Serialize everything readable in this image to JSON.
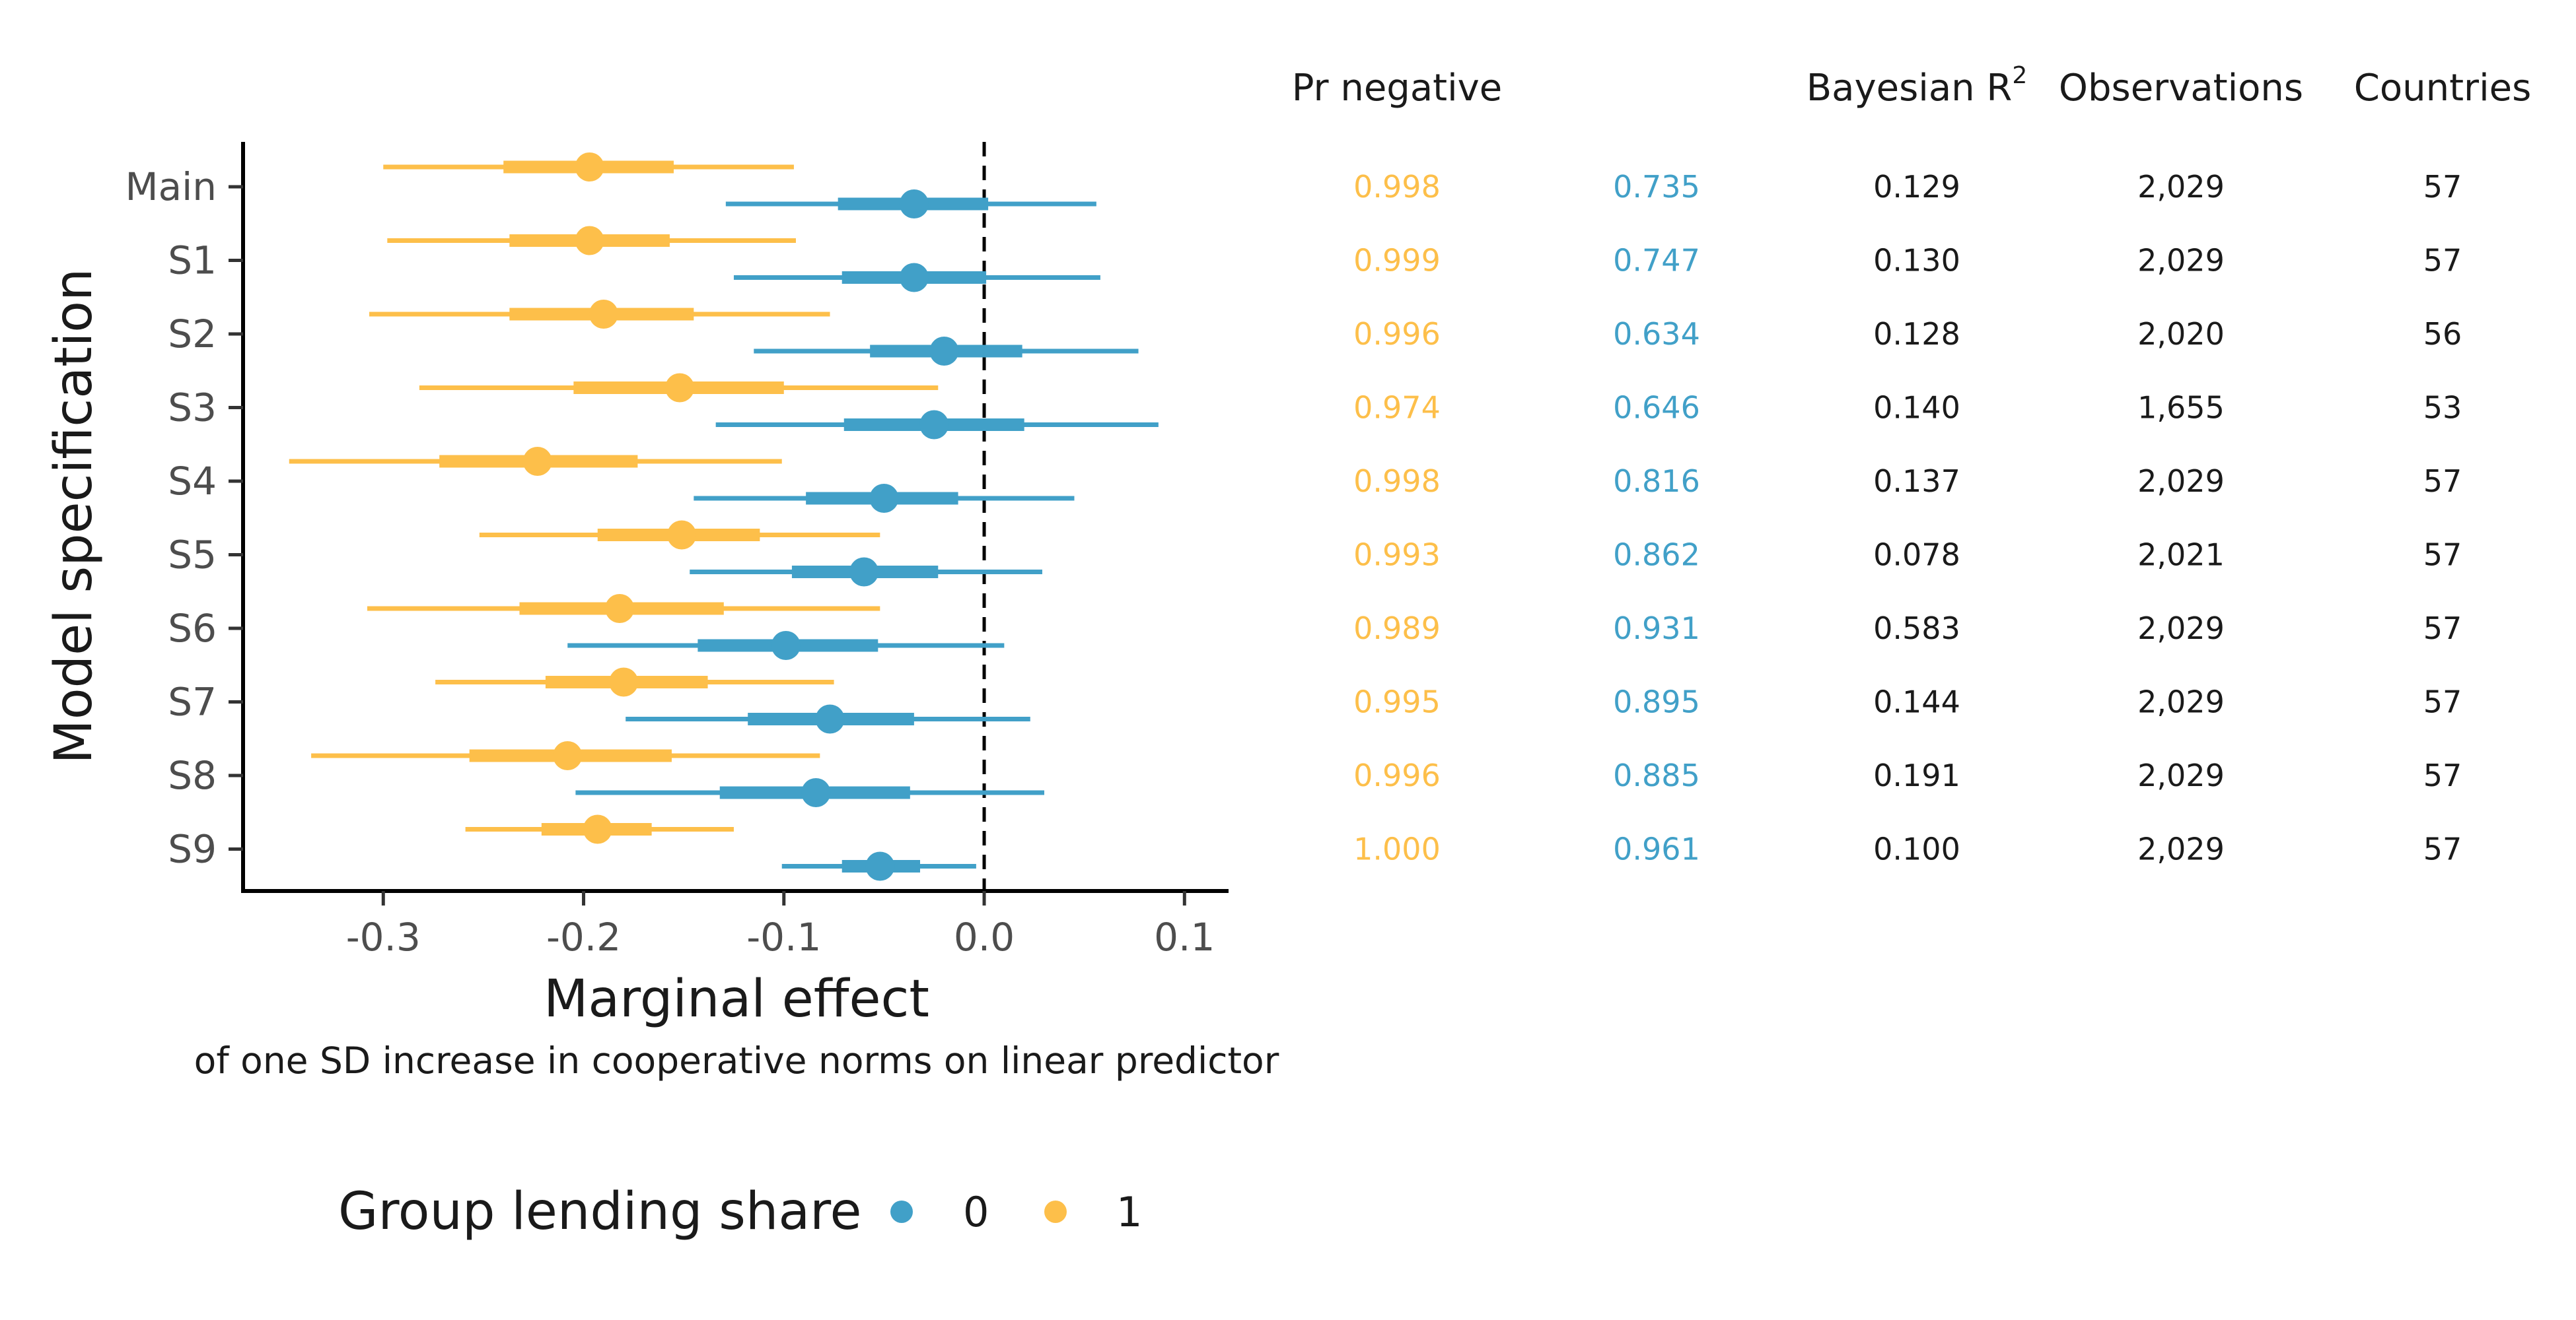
{
  "chart_data": {
    "type": "scatter",
    "title": "",
    "xlabel": "Marginal effect",
    "xlabel_sub": "of one SD increase in cooperative norms on linear predictor",
    "ylabel": "Model specification",
    "xlim": [
      -0.37,
      0.122
    ],
    "xticks": [
      "-0.3",
      "-0.2",
      "-0.1",
      "0.0",
      "0.1"
    ],
    "xtick_values": [
      -0.3,
      -0.2,
      -0.1,
      0.0,
      0.1
    ],
    "reference_line": 0.0,
    "grid": false,
    "legend_position": "bottom",
    "categories": [
      "Main",
      "S1",
      "S2",
      "S3",
      "S4",
      "S5",
      "S6",
      "S7",
      "S8",
      "S9"
    ],
    "series": [
      {
        "name": "1",
        "color": "#FDBF4A",
        "points": [
          {
            "est": -0.197,
            "inner": [
              -0.24,
              -0.155
            ],
            "outer": [
              -0.3,
              -0.095
            ]
          },
          {
            "est": -0.197,
            "inner": [
              -0.237,
              -0.157
            ],
            "outer": [
              -0.298,
              -0.094
            ]
          },
          {
            "est": -0.19,
            "inner": [
              -0.237,
              -0.145
            ],
            "outer": [
              -0.307,
              -0.077
            ]
          },
          {
            "est": -0.152,
            "inner": [
              -0.205,
              -0.1
            ],
            "outer": [
              -0.282,
              -0.023
            ]
          },
          {
            "est": -0.223,
            "inner": [
              -0.272,
              -0.173
            ],
            "outer": [
              -0.347,
              -0.101
            ]
          },
          {
            "est": -0.151,
            "inner": [
              -0.193,
              -0.112
            ],
            "outer": [
              -0.252,
              -0.052
            ]
          },
          {
            "est": -0.182,
            "inner": [
              -0.232,
              -0.13
            ],
            "outer": [
              -0.308,
              -0.052
            ]
          },
          {
            "est": -0.18,
            "inner": [
              -0.219,
              -0.138
            ],
            "outer": [
              -0.274,
              -0.075
            ]
          },
          {
            "est": -0.208,
            "inner": [
              -0.257,
              -0.156
            ],
            "outer": [
              -0.336,
              -0.082
            ]
          },
          {
            "est": -0.193,
            "inner": [
              -0.221,
              -0.166
            ],
            "outer": [
              -0.259,
              -0.125
            ]
          }
        ]
      },
      {
        "name": "0",
        "color": "#41A0C8",
        "points": [
          {
            "est": -0.035,
            "inner": [
              -0.073,
              0.002
            ],
            "outer": [
              -0.129,
              0.056
            ]
          },
          {
            "est": -0.035,
            "inner": [
              -0.071,
              0.001
            ],
            "outer": [
              -0.125,
              0.058
            ]
          },
          {
            "est": -0.02,
            "inner": [
              -0.057,
              0.019
            ],
            "outer": [
              -0.115,
              0.077
            ]
          },
          {
            "est": -0.025,
            "inner": [
              -0.07,
              0.02
            ],
            "outer": [
              -0.134,
              0.087
            ]
          },
          {
            "est": -0.05,
            "inner": [
              -0.089,
              -0.013
            ],
            "outer": [
              -0.145,
              0.045
            ]
          },
          {
            "est": -0.06,
            "inner": [
              -0.096,
              -0.023
            ],
            "outer": [
              -0.147,
              0.029
            ]
          },
          {
            "est": -0.099,
            "inner": [
              -0.143,
              -0.053
            ],
            "outer": [
              -0.208,
              0.01
            ]
          },
          {
            "est": -0.077,
            "inner": [
              -0.118,
              -0.035
            ],
            "outer": [
              -0.179,
              0.023
            ]
          },
          {
            "est": -0.084,
            "inner": [
              -0.132,
              -0.037
            ],
            "outer": [
              -0.204,
              0.03
            ]
          },
          {
            "est": -0.052,
            "inner": [
              -0.071,
              -0.032
            ],
            "outer": [
              -0.101,
              -0.004
            ]
          }
        ]
      }
    ]
  },
  "table": {
    "headers": {
      "pr_negative": "Pr negative",
      "bayes_r2": "Bayesian R",
      "bayes_r2_sup": "2",
      "observations": "Observations",
      "countries": "Countries"
    },
    "rows": [
      {
        "pr1": "0.998",
        "pr0": "0.735",
        "r2": "0.129",
        "obs": "2,029",
        "countries": "57"
      },
      {
        "pr1": "0.999",
        "pr0": "0.747",
        "r2": "0.130",
        "obs": "2,029",
        "countries": "57"
      },
      {
        "pr1": "0.996",
        "pr0": "0.634",
        "r2": "0.128",
        "obs": "2,020",
        "countries": "56"
      },
      {
        "pr1": "0.974",
        "pr0": "0.646",
        "r2": "0.140",
        "obs": "1,655",
        "countries": "53"
      },
      {
        "pr1": "0.998",
        "pr0": "0.816",
        "r2": "0.137",
        "obs": "2,029",
        "countries": "57"
      },
      {
        "pr1": "0.993",
        "pr0": "0.862",
        "r2": "0.078",
        "obs": "2,021",
        "countries": "57"
      },
      {
        "pr1": "0.989",
        "pr0": "0.931",
        "r2": "0.583",
        "obs": "2,029",
        "countries": "57"
      },
      {
        "pr1": "0.995",
        "pr0": "0.895",
        "r2": "0.144",
        "obs": "2,029",
        "countries": "57"
      },
      {
        "pr1": "0.996",
        "pr0": "0.885",
        "r2": "0.191",
        "obs": "2,029",
        "countries": "57"
      },
      {
        "pr1": "1.000",
        "pr0": "0.961",
        "r2": "0.100",
        "obs": "2,029",
        "countries": "57"
      }
    ]
  },
  "legend": {
    "title": "Group lending share",
    "items": [
      {
        "label": "0",
        "color": "#41A0C8"
      },
      {
        "label": "1",
        "color": "#FDBF4A"
      }
    ]
  },
  "colors": {
    "text": "#1a1a1a",
    "tick": "#4d4d4d",
    "axis": "#000000"
  }
}
